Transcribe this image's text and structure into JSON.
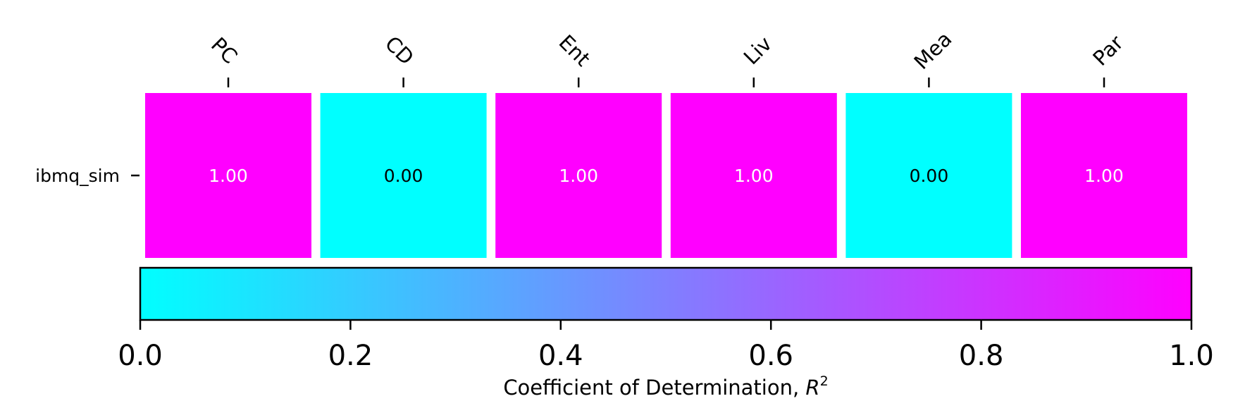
{
  "chart_data": {
    "type": "heatmap",
    "x_categories": [
      "PC",
      "CD",
      "Ent",
      "Liv",
      "Mea",
      "Par"
    ],
    "y_categories": [
      "ibmq_sim"
    ],
    "values": [
      [
        1.0,
        0.0,
        1.0,
        1.0,
        0.0,
        1.0
      ]
    ],
    "value_labels": [
      [
        "1.00",
        "0.00",
        "1.00",
        "1.00",
        "0.00",
        "1.00"
      ]
    ],
    "colormap": {
      "name": "cool",
      "low_color": "#00ffff",
      "high_color": "#ff00ff",
      "vmin": 0.0,
      "vmax": 1.0
    },
    "annotation_colors": {
      "on_high": "#ffffff",
      "on_low": "#000000"
    },
    "colorbar": {
      "orientation": "horizontal",
      "placement": "bottom",
      "ticks": [
        0.0,
        0.2,
        0.4,
        0.6,
        0.8,
        1.0
      ],
      "tick_labels": [
        "0.0",
        "0.2",
        "0.4",
        "0.6",
        "0.8",
        "1.0"
      ],
      "label_text": "Coefficient of Determination, ",
      "label_symbol": "R",
      "label_superscript": "2"
    },
    "x_tick_position": "top",
    "grid": false
  }
}
